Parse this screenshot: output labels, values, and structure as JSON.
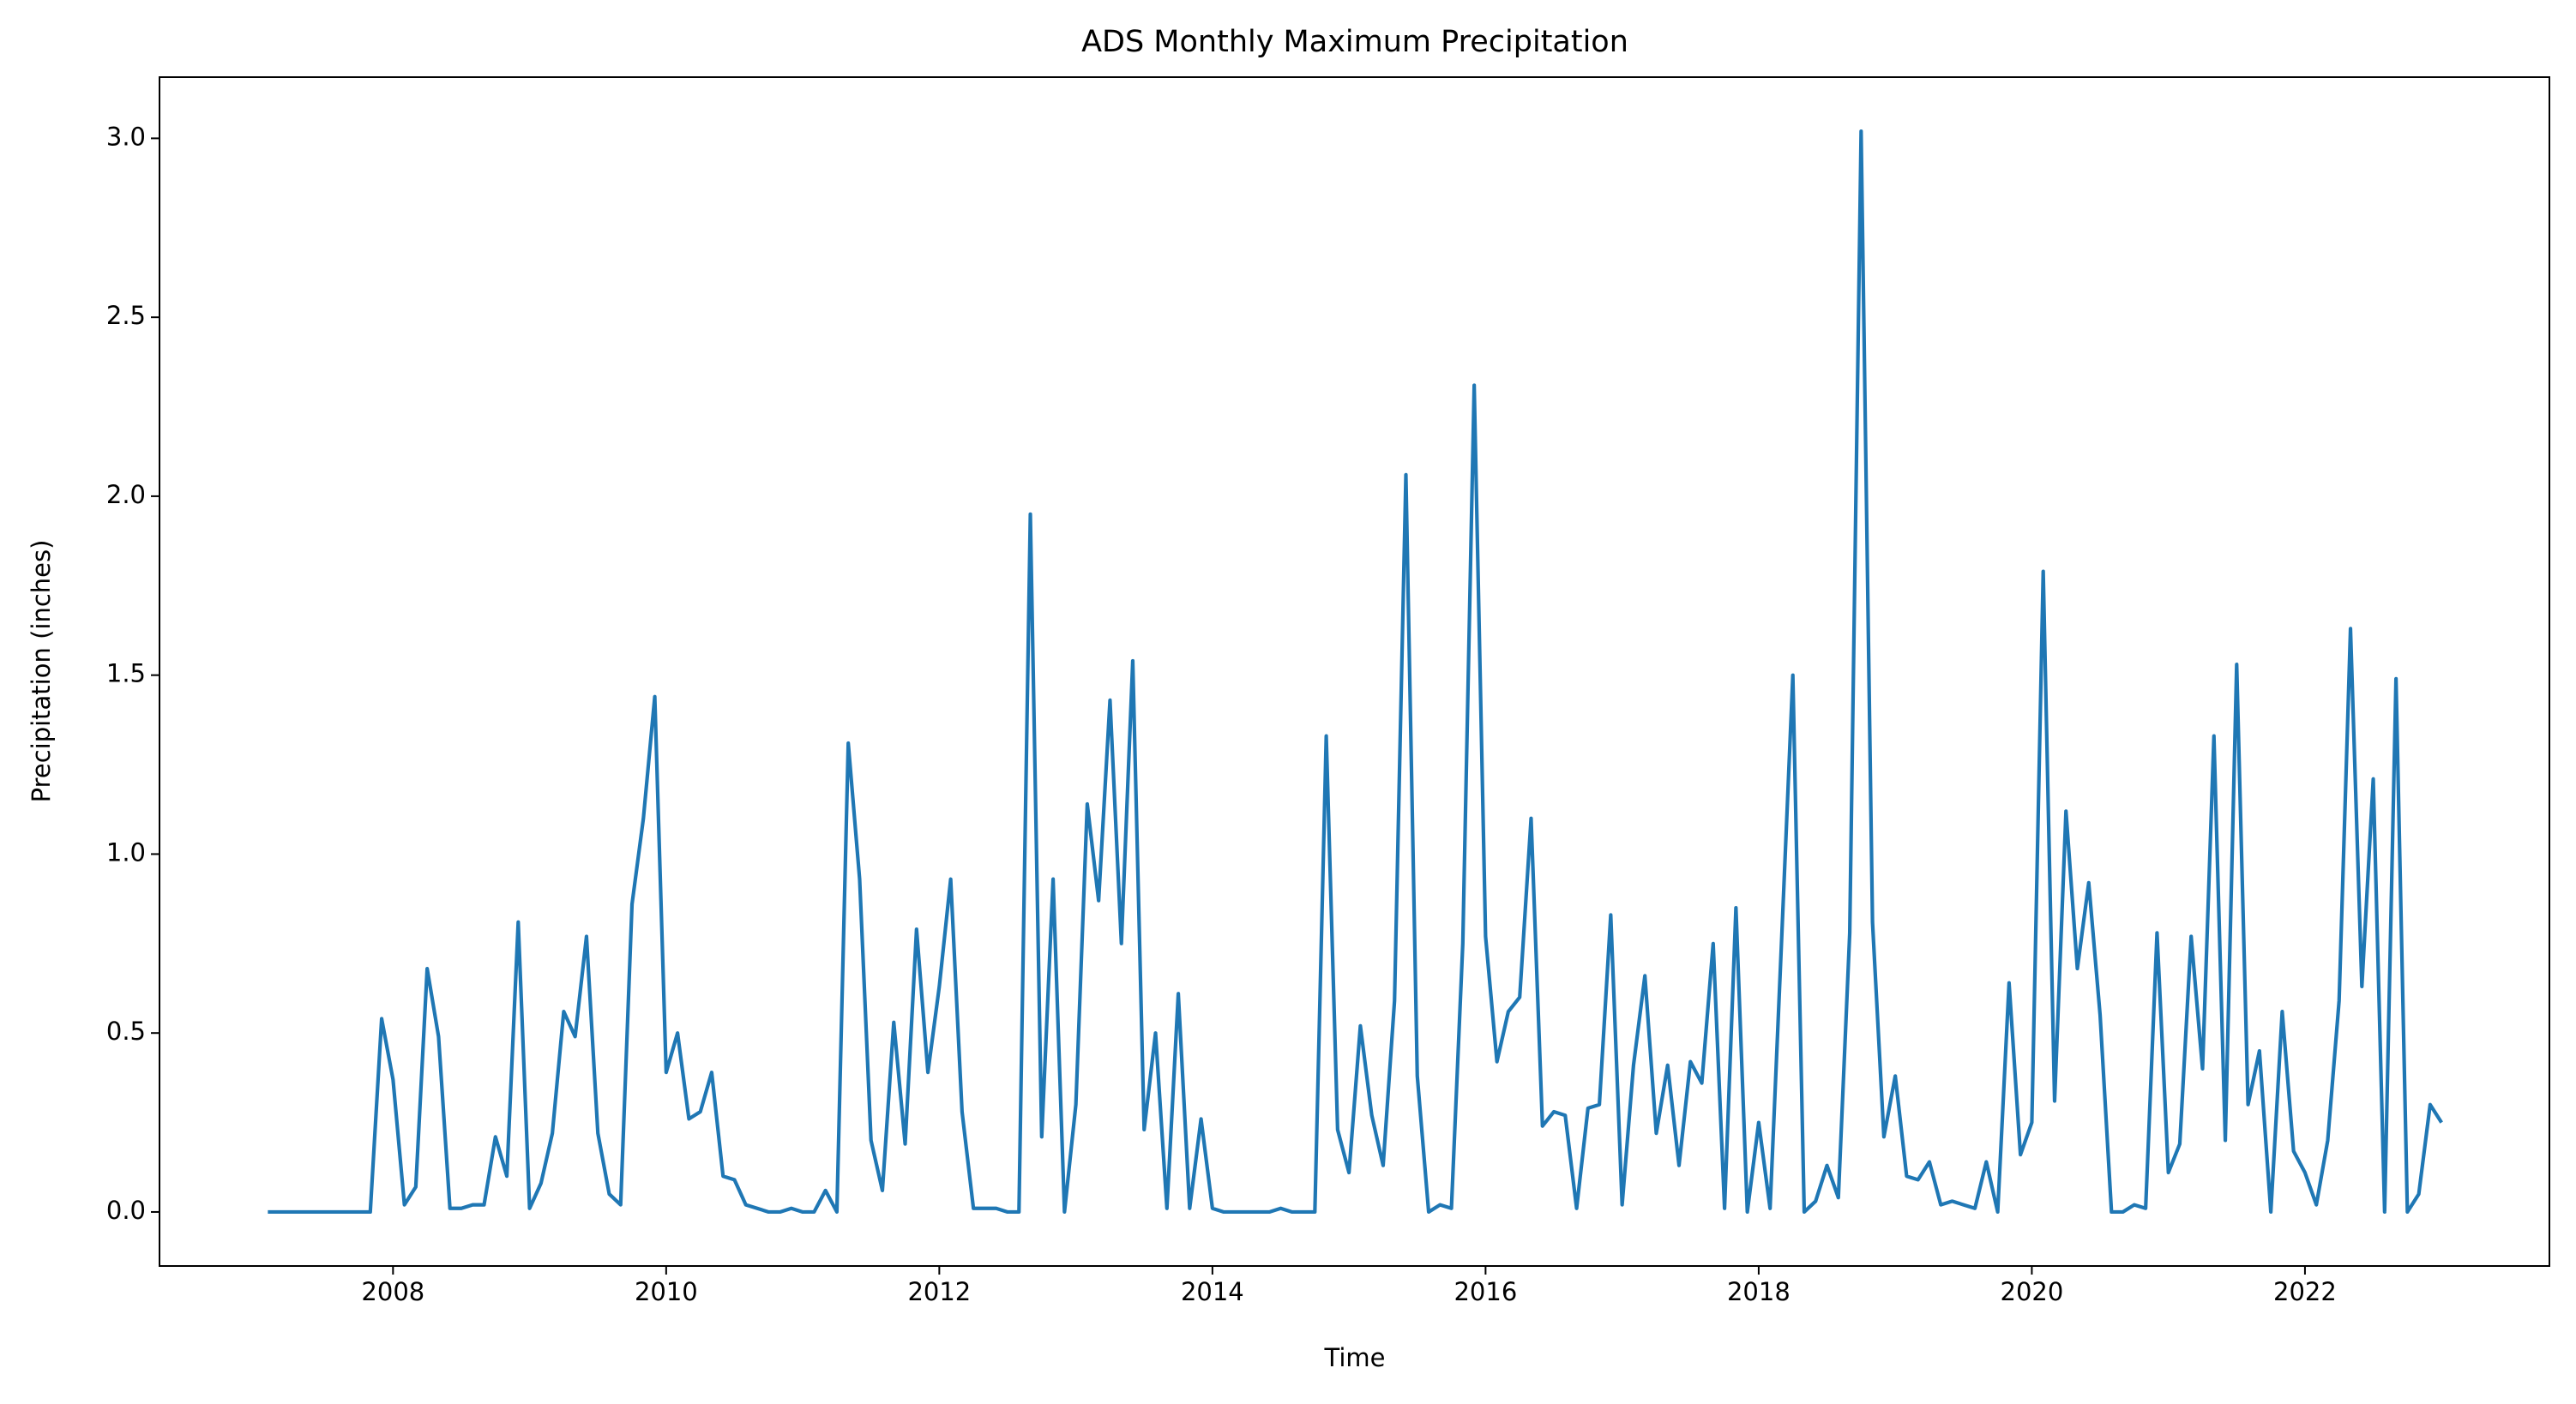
{
  "chart_data": {
    "type": "line",
    "title": "ADS Monthly Maximum Precipitation",
    "xlabel": "Time",
    "ylabel": "Precipitation (inches)",
    "color": "#1f77b4",
    "x": [
      "2007-01",
      "2007-02",
      "2007-03",
      "2007-04",
      "2007-05",
      "2007-06",
      "2007-07",
      "2007-08",
      "2007-09",
      "2007-10",
      "2007-11",
      "2007-12",
      "2008-01",
      "2008-02",
      "2008-03",
      "2008-04",
      "2008-05",
      "2008-06",
      "2008-07",
      "2008-08",
      "2008-09",
      "2008-10",
      "2008-11",
      "2008-12",
      "2009-01",
      "2009-02",
      "2009-03",
      "2009-04",
      "2009-05",
      "2009-06",
      "2009-07",
      "2009-08",
      "2009-09",
      "2009-10",
      "2009-11",
      "2009-12",
      "2010-01",
      "2010-02",
      "2010-03",
      "2010-04",
      "2010-05",
      "2010-06",
      "2010-07",
      "2010-08",
      "2010-09",
      "2010-10",
      "2010-11",
      "2010-12",
      "2011-01",
      "2011-02",
      "2011-03",
      "2011-04",
      "2011-05",
      "2011-06",
      "2011-07",
      "2011-08",
      "2011-09",
      "2011-10",
      "2011-11",
      "2011-12",
      "2012-01",
      "2012-02",
      "2012-03",
      "2012-04",
      "2012-05",
      "2012-06",
      "2012-07",
      "2012-08",
      "2012-09",
      "2012-10",
      "2012-11",
      "2012-12",
      "2013-01",
      "2013-02",
      "2013-03",
      "2013-04",
      "2013-05",
      "2013-06",
      "2013-07",
      "2013-08",
      "2013-09",
      "2013-10",
      "2013-11",
      "2013-12",
      "2014-01",
      "2014-02",
      "2014-03",
      "2014-04",
      "2014-05",
      "2014-06",
      "2014-07",
      "2014-08",
      "2014-09",
      "2014-10",
      "2014-11",
      "2014-12",
      "2015-01",
      "2015-02",
      "2015-03",
      "2015-04",
      "2015-05",
      "2015-06",
      "2015-07",
      "2015-08",
      "2015-09",
      "2015-10",
      "2015-11",
      "2015-12",
      "2016-01",
      "2016-02",
      "2016-03",
      "2016-04",
      "2016-05",
      "2016-06",
      "2016-07",
      "2016-08",
      "2016-09",
      "2016-10",
      "2016-11",
      "2016-12",
      "2017-01",
      "2017-02",
      "2017-03",
      "2017-04",
      "2017-05",
      "2017-06",
      "2017-07",
      "2017-08",
      "2017-09",
      "2017-10",
      "2017-11",
      "2017-12",
      "2018-01",
      "2018-02",
      "2018-03",
      "2018-04",
      "2018-05",
      "2018-06",
      "2018-07",
      "2018-08",
      "2018-09",
      "2018-10",
      "2018-11",
      "2018-12",
      "2019-01",
      "2019-02",
      "2019-03",
      "2019-04",
      "2019-05",
      "2019-06",
      "2019-07",
      "2019-08",
      "2019-09",
      "2019-10",
      "2019-11",
      "2019-12",
      "2020-01",
      "2020-02",
      "2020-03",
      "2020-04",
      "2020-05",
      "2020-06",
      "2020-07",
      "2020-08",
      "2020-09",
      "2020-10",
      "2020-11",
      "2020-12",
      "2021-01",
      "2021-02",
      "2021-03",
      "2021-04",
      "2021-05",
      "2021-06",
      "2021-07",
      "2021-08",
      "2021-09",
      "2021-10",
      "2021-11",
      "2021-12",
      "2022-01",
      "2022-02",
      "2022-03",
      "2022-04",
      "2022-05",
      "2022-06",
      "2022-07",
      "2022-08",
      "2022-09",
      "2022-10",
      "2022-11",
      "2022-12"
    ],
    "values": [
      0,
      0,
      0,
      0,
      0,
      0,
      0,
      0,
      0,
      0,
      0.54,
      0.37,
      0.02,
      0.07,
      0.68,
      0.49,
      0.01,
      0.01,
      0.02,
      0.02,
      0.21,
      0.1,
      0.81,
      0.01,
      0.08,
      0.22,
      0.56,
      0.49,
      0.77,
      0.22,
      0.05,
      0.02,
      0.86,
      1.1,
      1.44,
      0.39,
      0.5,
      0.26,
      0.28,
      0.39,
      0.1,
      0.09,
      0.02,
      0.01,
      0,
      0,
      0.01,
      0,
      0,
      0.06,
      0,
      1.31,
      0.93,
      0.2,
      0.06,
      0.53,
      0.19,
      0.79,
      0.39,
      0.63,
      0.93,
      0.28,
      0.01,
      0.01,
      0.01,
      0,
      0,
      1.95,
      0.21,
      0.93,
      0,
      0.3,
      1.14,
      0.87,
      1.43,
      0.75,
      1.54,
      0.23,
      0.5,
      0.01,
      0.61,
      0.01,
      0.26,
      0.01,
      0,
      0,
      0,
      0,
      0,
      0.01,
      0,
      0,
      0,
      1.33,
      0.23,
      0.11,
      0.52,
      0.27,
      0.13,
      0.59,
      2.06,
      0.38,
      0,
      0.02,
      0.01,
      0.75,
      2.31,
      0.77,
      0.42,
      0.56,
      0.6,
      1.1,
      0.24,
      0.28,
      0.27,
      0.01,
      0.29,
      0.3,
      0.83,
      0.02,
      0.41,
      0.66,
      0.22,
      0.41,
      0.13,
      0.42,
      0.36,
      0.75,
      0.01,
      0.85,
      0,
      0.25,
      0.01,
      0.75,
      1.5,
      0,
      0.03,
      0.13,
      0.04,
      0.78,
      3.02,
      0.81,
      0.21,
      0.38,
      0.1,
      0.09,
      0.14,
      0.02,
      0.03,
      0.02,
      0.01,
      0.14,
      0,
      0.64,
      0.16,
      0.25,
      1.79,
      0.31,
      1.12,
      0.68,
      0.92,
      0.55,
      0,
      0,
      0.02,
      0.01,
      0.78,
      0.11,
      0.19,
      0.77,
      0.4,
      1.33,
      0.2,
      1.53,
      0.3,
      0.45,
      0,
      0.56,
      0.17,
      0.11,
      0.02,
      0.2,
      0.59,
      1.63,
      0.63,
      1.21,
      0,
      1.49,
      0,
      0.05,
      0.3,
      0.25
    ],
    "xlim": [
      2006.29,
      2023.79
    ],
    "xticks": [
      2008,
      2010,
      2012,
      2014,
      2016,
      2018,
      2020,
      2022
    ],
    "ylim": [
      -0.151,
      3.171
    ],
    "yticks": [
      {
        "value": 0,
        "label": "0.0"
      },
      {
        "value": 0.5,
        "label": "0.5"
      },
      {
        "value": 1,
        "label": "1.0"
      },
      {
        "value": 1.5,
        "label": "1.5"
      },
      {
        "value": 2,
        "label": "2.0"
      },
      {
        "value": 2.5,
        "label": "2.5"
      },
      {
        "value": 3,
        "label": "3.0"
      }
    ],
    "grid": false
  }
}
